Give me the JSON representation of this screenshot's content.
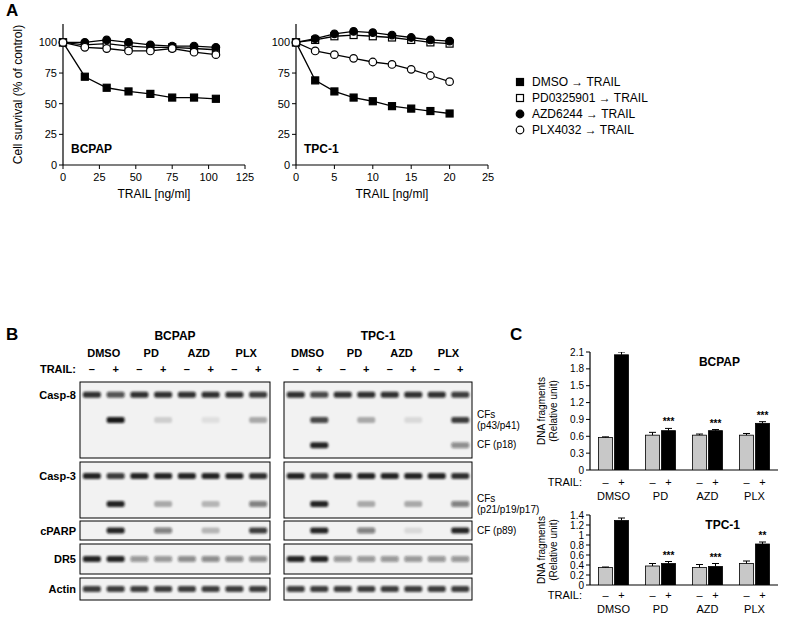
{
  "panel_labels": [
    "A",
    "B",
    "C"
  ],
  "chart_data": [
    {
      "type": "line",
      "title": "BCPAP",
      "x_label": "TRAIL [ng/ml]",
      "y_label": "Cell survival (% of control)",
      "x": [
        0,
        15,
        30,
        45,
        60,
        75,
        90,
        105
      ],
      "xlim": [
        0,
        125
      ],
      "xticks": [
        0,
        25,
        50,
        75,
        100,
        125
      ],
      "ylim": [
        0,
        115
      ],
      "yticks": [
        0,
        25,
        50,
        75,
        100
      ],
      "legend": "right",
      "series": [
        {
          "name": "DMSO → TRAIL",
          "color": "#000000",
          "marker": "square",
          "values": [
            100,
            72,
            63,
            60,
            58,
            55,
            55,
            54
          ]
        },
        {
          "name": "PD0325901 → TRAIL",
          "color": "#000000",
          "marker": "square-open",
          "values": [
            100,
            98,
            99,
            97,
            96,
            96,
            95,
            94
          ]
        },
        {
          "name": "AZD6244 → TRAIL",
          "color": "#000000",
          "marker": "circle",
          "values": [
            100,
            100,
            102,
            100,
            98,
            97,
            97,
            96
          ]
        },
        {
          "name": "PLX4032 → TRAIL",
          "color": "#000000",
          "marker": "circle-open",
          "values": [
            100,
            96,
            95,
            93,
            93,
            95,
            92,
            90
          ]
        }
      ]
    },
    {
      "type": "line",
      "title": "TPC-1",
      "x_label": "TRAIL [ng/ml]",
      "x": [
        0,
        2.5,
        5,
        7.5,
        10,
        12.5,
        15,
        17.5,
        20
      ],
      "xlim": [
        0,
        25
      ],
      "xticks": [
        0,
        5,
        10,
        15,
        20,
        25
      ],
      "ylim": [
        0,
        115
      ],
      "yticks": [
        0,
        25,
        50,
        75,
        100
      ],
      "series": [
        {
          "name": "DMSO → TRAIL",
          "color": "#000000",
          "marker": "square",
          "values": [
            100,
            69,
            60,
            55,
            52,
            48,
            46,
            44,
            42
          ]
        },
        {
          "name": "PD0325901 → TRAIL",
          "color": "#000000",
          "marker": "square-open",
          "values": [
            100,
            102,
            105,
            106,
            105,
            104,
            102,
            100,
            99
          ]
        },
        {
          "name": "AZD6244 → TRAIL",
          "color": "#000000",
          "marker": "circle",
          "values": [
            100,
            103,
            107,
            109,
            108,
            106,
            104,
            102,
            101
          ]
        },
        {
          "name": "PLX4032 → TRAIL",
          "color": "#000000",
          "marker": "circle-open",
          "values": [
            100,
            93,
            90,
            87,
            84,
            82,
            78,
            73,
            68
          ]
        }
      ]
    },
    {
      "type": "bar",
      "title": "BCPAP",
      "x_label": "TRAIL:",
      "y_label": [
        "DNA fragments",
        "(Relative unit)"
      ],
      "categories": [
        "DMSO",
        "PD",
        "AZD",
        "PLX"
      ],
      "ylim": [
        0,
        2.1
      ],
      "yticks": [
        0,
        0.3,
        0.6,
        0.9,
        1.2,
        1.5,
        1.8,
        2.1
      ],
      "series": [
        {
          "name": "–",
          "color": "#c8c8c8",
          "values": [
            0.58,
            0.62,
            0.62,
            0.62
          ],
          "errors": [
            0.01,
            0.05,
            0.02,
            0.03
          ]
        },
        {
          "name": "+",
          "color": "#000000",
          "values": [
            2.05,
            0.7,
            0.7,
            0.83
          ],
          "errors": [
            0.05,
            0.04,
            0.02,
            0.03
          ],
          "significance": [
            null,
            "***",
            "***",
            "***"
          ]
        }
      ]
    },
    {
      "type": "bar",
      "title": "TPC-1",
      "x_label": "TRAIL:",
      "y_label": [
        "DNA fragments",
        "(Relative unit)"
      ],
      "categories": [
        "DMSO",
        "PD",
        "AZD",
        "PLX"
      ],
      "ylim": [
        0,
        1.4
      ],
      "yticks": [
        0,
        0.2,
        0.4,
        0.6,
        0.8,
        1,
        1.2,
        1.4
      ],
      "series": [
        {
          "name": "–",
          "color": "#c8c8c8",
          "values": [
            0.35,
            0.38,
            0.35,
            0.43
          ],
          "errors": [
            0.01,
            0.05,
            0.06,
            0.05
          ]
        },
        {
          "name": "+",
          "color": "#000000",
          "values": [
            1.29,
            0.43,
            0.37,
            0.82
          ],
          "errors": [
            0.05,
            0.04,
            0.06,
            0.04
          ],
          "significance": [
            null,
            "***",
            "***",
            "**"
          ]
        }
      ]
    }
  ],
  "blot": {
    "cell_lines": [
      {
        "name": "BCPAP",
        "treatments": [
          "DMSO",
          "PD",
          "AZD",
          "PLX"
        ]
      },
      {
        "name": "TPC-1",
        "treatments": [
          "DMSO",
          "PD",
          "AZD",
          "PLX"
        ]
      }
    ],
    "trail_label": "TRAIL:",
    "trail": [
      "–",
      "+"
    ],
    "rows": [
      {
        "label": "Casp-8",
        "bands": [
          {
            "intensity": [
              0.85,
              0.7,
              0.85,
              0.85,
              0.85,
              0.85,
              0.85,
              0.8,
              0.85,
              0.75,
              0.85,
              0.85,
              0.85,
              0.85,
              0.85,
              0.8
            ]
          },
          {
            "label": [
              "CFs",
              "(p43/p41)"
            ],
            "intensity": [
              0,
              0.95,
              0,
              0.15,
              0,
              0.08,
              0,
              0.3,
              0,
              0.75,
              0,
              0.3,
              0,
              0.1,
              0,
              0.8
            ]
          },
          {
            "label": [
              "CF (p18)"
            ],
            "intensity": [
              0,
              0,
              0,
              0,
              0,
              0,
              0,
              0,
              0,
              0.9,
              0,
              0,
              0,
              0,
              0,
              0.45
            ]
          }
        ]
      },
      {
        "label": "Casp-3",
        "bands": [
          {
            "intensity": [
              0.9,
              0.8,
              0.9,
              0.9,
              0.9,
              0.9,
              0.9,
              0.85,
              0.9,
              0.8,
              0.9,
              0.9,
              0.9,
              0.9,
              0.9,
              0.85
            ]
          },
          {
            "label": [
              "CFs",
              "(p21/p19/p17)"
            ],
            "intensity": [
              0,
              0.9,
              0,
              0.3,
              0,
              0.25,
              0,
              0.5,
              0,
              0.9,
              0,
              0.3,
              0,
              0.3,
              0,
              0.5
            ]
          }
        ]
      },
      {
        "label": "cPARP",
        "bands": [
          {
            "label": [
              "CF (p89)"
            ],
            "intensity": [
              0,
              0.9,
              0,
              0.5,
              0,
              0.25,
              0,
              0.8,
              0,
              0.9,
              0,
              0.5,
              0,
              0.1,
              0,
              0.9
            ]
          }
        ]
      },
      {
        "label": "DR5",
        "bands": [
          {
            "intensity": [
              0.9,
              0.9,
              0.4,
              0.4,
              0.45,
              0.45,
              0.45,
              0.45,
              0.9,
              0.9,
              0.4,
              0.4,
              0.4,
              0.4,
              0.4,
              0.4
            ]
          }
        ]
      },
      {
        "label": "Actin",
        "bands": [
          {
            "intensity": [
              0.8,
              0.8,
              0.8,
              0.8,
              0.8,
              0.8,
              0.8,
              0.8,
              0.8,
              0.8,
              0.8,
              0.8,
              0.8,
              0.8,
              0.8,
              0.8
            ]
          }
        ]
      }
    ]
  }
}
